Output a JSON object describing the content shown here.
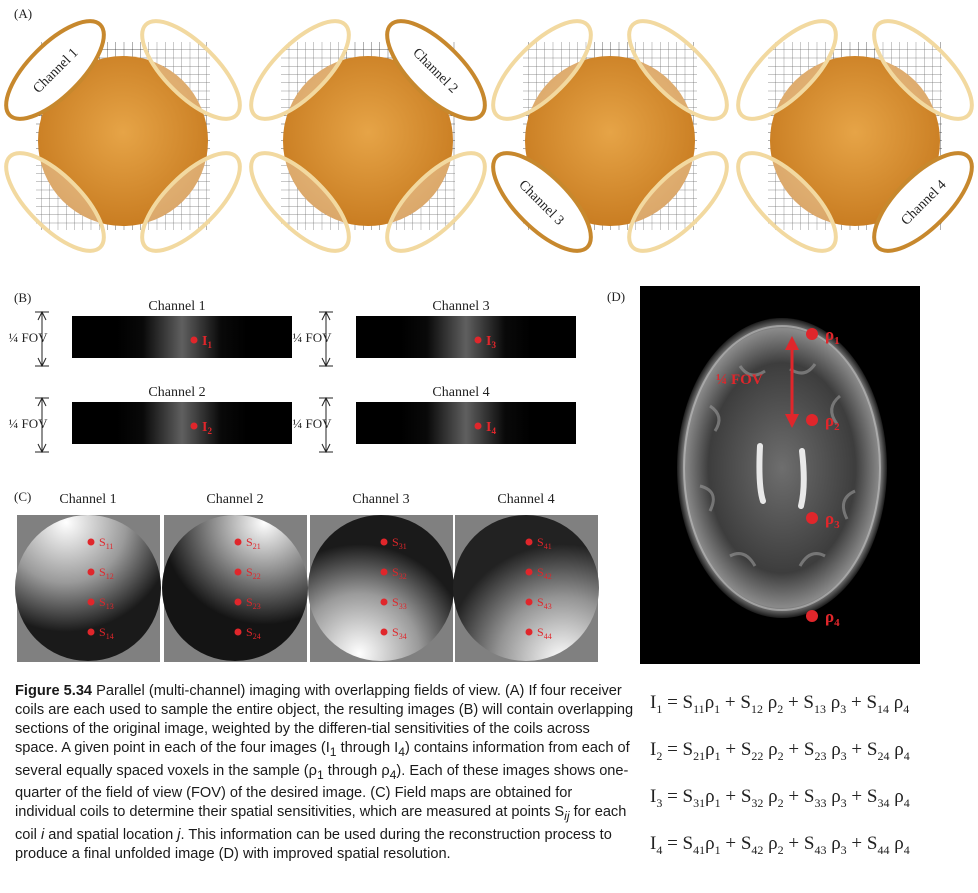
{
  "panel_labels": {
    "a": "(A)",
    "b": "(B)",
    "c": "(C)",
    "d": "(D)"
  },
  "panel_a": {
    "channel_labels": [
      "Channel 1",
      "Channel 2",
      "Channel 3",
      "Channel 4"
    ]
  },
  "panel_b": {
    "fov_label": "¼ FOV",
    "channels": [
      {
        "title": "Channel 1",
        "point": "I",
        "sub": "1"
      },
      {
        "title": "Channel 2",
        "point": "I",
        "sub": "2"
      },
      {
        "title": "Channel 3",
        "point": "I",
        "sub": "3"
      },
      {
        "title": "Channel 4",
        "point": "I",
        "sub": "4"
      }
    ]
  },
  "panel_c": {
    "channels": [
      {
        "title": "Channel 1",
        "points": [
          "11",
          "12",
          "13",
          "14"
        ]
      },
      {
        "title": "Channel 2",
        "points": [
          "21",
          "22",
          "23",
          "24"
        ]
      },
      {
        "title": "Channel 3",
        "points": [
          "31",
          "32",
          "33",
          "34"
        ]
      },
      {
        "title": "Channel 4",
        "points": [
          "41",
          "42",
          "43",
          "44"
        ]
      }
    ],
    "point_letter": "S"
  },
  "panel_d": {
    "fov_label": "¼ FOV",
    "points": [
      "ρ1",
      "ρ2",
      "ρ3",
      "ρ4"
    ]
  },
  "caption": {
    "figure": "Figure 5.34",
    "text": "Parallel (multi-channel) imaging with overlapping fields of view. (A) If four receiver coils are each used to sample the entire object, the resulting images (B) will contain overlapping sections of the original image, weighted by the differential sensitivities of the coils across space. A given point in each of the four images (I1 through I4) contains information from each of several equally spaced voxels in the sample (ρ1 through ρ4). Each of these images shows one-quarter of the field of view (FOV) of the desired image. (C) Field maps are obtained for individual coils to determine their spatial sensitivities, which are measured at points Sij for each coil i and spatial location j. This information can be used during the reconstruction process to produce a final unfolded image (D) with improved spatial resolution."
  },
  "equations": [
    "I1 = S11ρ1 + S12 ρ2 + S13 ρ3 + S14 ρ4",
    "I2 = S21ρ1 + S22 ρ2 + S23 ρ3 + S24 ρ4",
    "I3 = S31ρ1 + S32 ρ2 + S33 ρ3 + S34 ρ4",
    "I4 = S41ρ1 + S42 ρ2 + S43 ρ3 + S44 ρ4"
  ],
  "colors": {
    "object_orange": "#d98f2b",
    "coil_light": "#f2d9a0",
    "coil_active": "#c7882d",
    "marker_red": "#e0262b",
    "mri_bg": "#000000",
    "field_gray": "#808080"
  }
}
